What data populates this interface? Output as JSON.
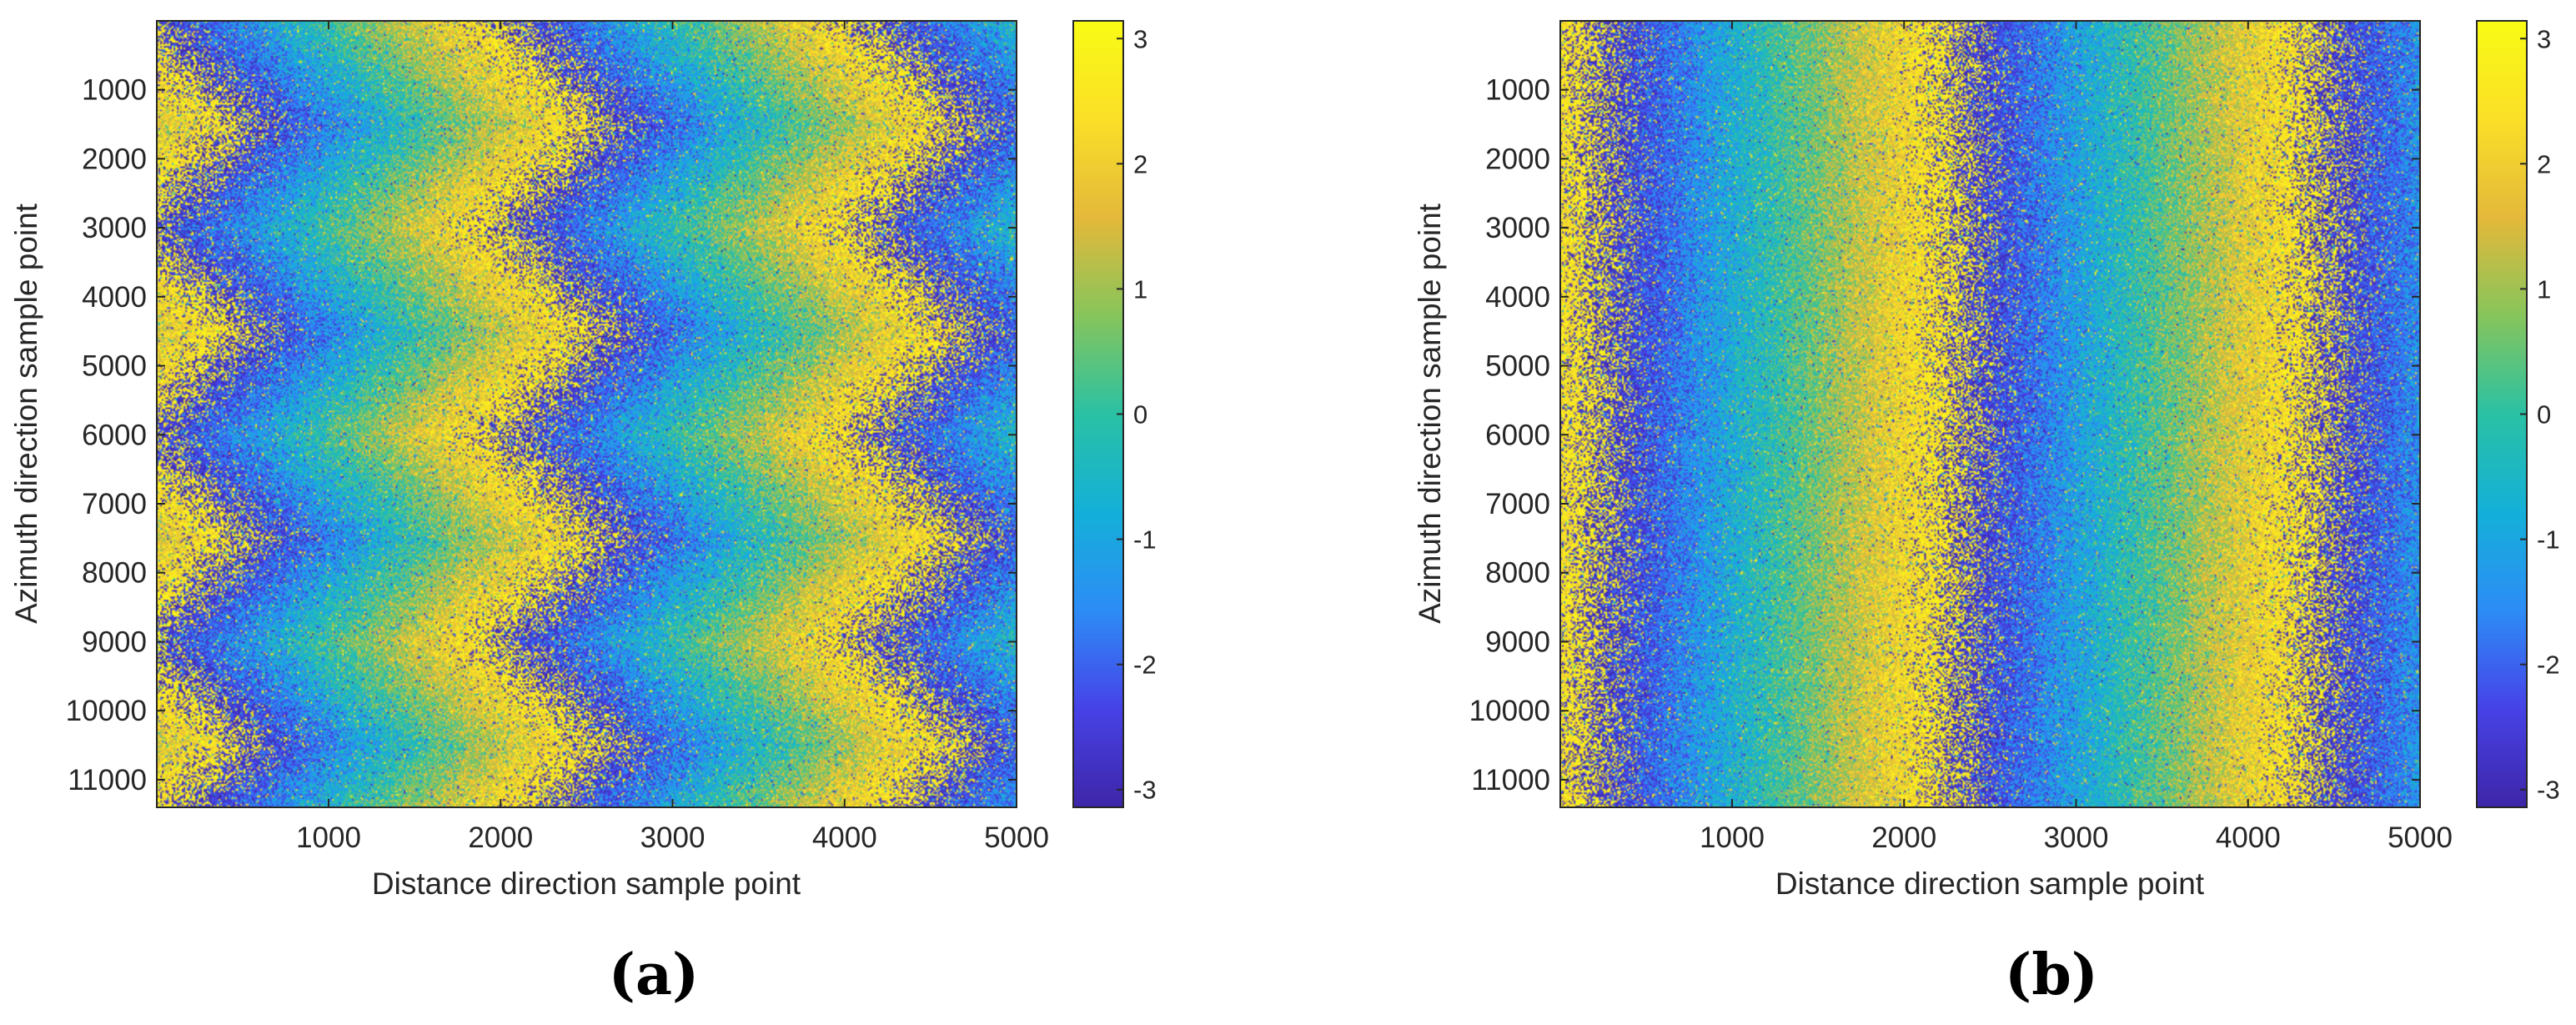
{
  "chart_data": [
    {
      "type": "heatmap",
      "panel": "a",
      "caption": "(a)",
      "xlabel": "Distance direction sample point",
      "ylabel": "Azimuth direction sample point",
      "xlim": [
        1,
        5000
      ],
      "ylim": [
        1,
        11400
      ],
      "xticks": [
        1000,
        2000,
        3000,
        4000,
        5000
      ],
      "yticks": [
        1000,
        2000,
        3000,
        4000,
        5000,
        6000,
        7000,
        8000,
        9000,
        10000,
        11000
      ],
      "colorbar": {
        "range": [
          -3.1416,
          3.1416
        ],
        "ticks": [
          -3,
          -2,
          -1,
          0,
          1,
          2,
          3
        ],
        "colormap": "parula"
      },
      "pattern": {
        "description": "wrapped phase fringes, zigzag (chevron) shaped",
        "fringe_period_x": 2100,
        "phase_zero_x": 1260,
        "zigzag_period_y": 3000,
        "zigzag_amplitude_x": 300,
        "noise_level": 0.55
      }
    },
    {
      "type": "heatmap",
      "panel": "b",
      "caption": "(b)",
      "xlabel": "Distance direction sample point",
      "ylabel": "Azimuth direction sample point",
      "xlim": [
        1,
        5000
      ],
      "ylim": [
        1,
        11400
      ],
      "xticks": [
        1000,
        2000,
        3000,
        4000,
        5000
      ],
      "yticks": [
        1000,
        2000,
        3000,
        4000,
        5000,
        6000,
        7000,
        8000,
        9000,
        10000,
        11000
      ],
      "colorbar": {
        "range": [
          -3.1416,
          3.1416
        ],
        "ticks": [
          -3,
          -2,
          -1,
          0,
          1,
          2,
          3
        ],
        "colormap": "parula"
      },
      "pattern": {
        "description": "wrapped phase fringes, nearly straight vertical bands",
        "fringe_period_x": 2100,
        "phase_zero_x": 1260,
        "zigzag_period_y": 0,
        "zigzag_amplitude_x": 0,
        "noise_level": 0.5
      }
    }
  ],
  "colors": {
    "parula": [
      "#3e26a8",
      "#4743e8",
      "#2d8df6",
      "#14b0d9",
      "#2ac1a4",
      "#86c55c",
      "#e4b93b",
      "#fadf28",
      "#f9fb15"
    ]
  }
}
